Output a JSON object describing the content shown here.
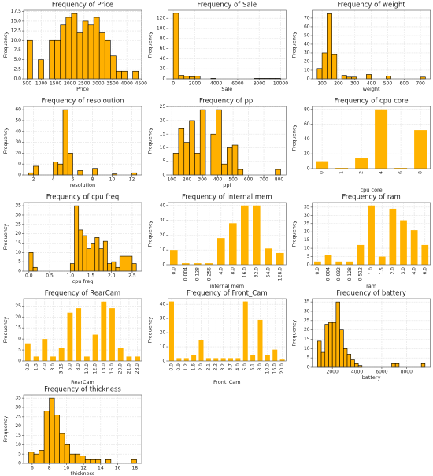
{
  "chart_data": [
    {
      "type": "histogram",
      "title": "Frequency of Price",
      "xlabel": "Price",
      "ylabel": "Frequency",
      "color": "#ffb000",
      "edgecolor": "#000000",
      "grid": true,
      "bins": [
        500,
        695,
        890,
        1085,
        1280,
        1475,
        1670,
        1865,
        2060,
        2255,
        2450,
        2645,
        2840,
        3035,
        3230,
        3425,
        3620,
        3815,
        4010,
        4205,
        4400
      ],
      "values": [
        10,
        0,
        5,
        0,
        10,
        10,
        14,
        16,
        17,
        12,
        15,
        14,
        16,
        12,
        10,
        6,
        2,
        2,
        0,
        2
      ],
      "xlim": [
        380,
        4520
      ],
      "xticks": [
        500,
        1000,
        1500,
        2000,
        2500,
        3000,
        3500,
        4000,
        4500
      ],
      "ylim": [
        0,
        17.85
      ],
      "yticks": [
        {
          "value": 0,
          "label": "0.0"
        },
        2.5,
        {
          "value": 5,
          "label": "5.0"
        },
        7.5,
        {
          "value": 10,
          "label": "10.0"
        },
        12.5,
        {
          "value": 15,
          "label": "15.0"
        },
        17.5
      ]
    },
    {
      "type": "histogram",
      "title": "Frequency of Sale",
      "xlabel": "Sale",
      "ylabel": "Frequency",
      "color": "#ffb000",
      "edgecolor": "#000000",
      "grid": true,
      "bins": [
        0,
        500,
        1000,
        1500,
        2000,
        2500,
        3000,
        3500,
        4000,
        4500,
        5000,
        5500,
        6000,
        6500,
        7000,
        7500,
        8000,
        8500,
        9000,
        9500,
        10000
      ],
      "values": [
        130,
        7,
        5,
        4,
        5,
        0,
        0,
        1,
        0,
        0,
        0,
        0,
        0,
        0,
        0,
        1,
        1,
        1,
        1,
        1
      ],
      "xlim": [
        -500,
        10500
      ],
      "xticks": [
        0,
        2000,
        4000,
        6000,
        8000,
        10000
      ],
      "ylim": [
        0,
        136
      ],
      "yticks": [
        0,
        20,
        40,
        60,
        80,
        100,
        120
      ]
    },
    {
      "type": "histogram",
      "title": "Frequency of weight",
      "xlabel": "weight",
      "ylabel": "Frequency",
      "color": "#ffb000",
      "edgecolor": "#000000",
      "grid": true,
      "bins": [
        70,
        100,
        130,
        160,
        190,
        220,
        250,
        280,
        310,
        340,
        370,
        400,
        430,
        460,
        490,
        520,
        550,
        580,
        610,
        640,
        670,
        700,
        730
      ],
      "values": [
        12,
        30,
        75,
        28,
        0,
        4,
        2,
        2,
        0,
        0,
        5,
        0,
        0,
        0,
        3,
        0,
        0,
        0,
        0,
        0,
        0,
        2
      ],
      "xlim": [
        40,
        760
      ],
      "xticks": [
        100,
        200,
        300,
        400,
        500,
        600,
        700
      ],
      "ylim": [
        0,
        79
      ],
      "yticks": [
        0,
        10,
        20,
        30,
        40,
        50,
        60,
        70
      ]
    },
    {
      "type": "histogram",
      "title": "Frequency of resoloution",
      "xlabel": "resolution",
      "ylabel": "Frequency",
      "color": "#ffb000",
      "edgecolor": "#000000",
      "grid": true,
      "bins": [
        1.5,
        2,
        2.5,
        3,
        3.5,
        4,
        4.5,
        5,
        5.5,
        6,
        6.5,
        7,
        7.5,
        8,
        8.5,
        9,
        9.5,
        10,
        10.5,
        11,
        11.5,
        12,
        12.5
      ],
      "values": [
        2,
        8,
        0,
        0,
        0,
        12,
        10,
        60,
        20,
        0,
        4,
        0,
        0,
        6,
        0,
        0,
        0,
        1,
        0,
        0,
        0,
        2
      ],
      "xlim": [
        1,
        13
      ],
      "xticks": [
        2,
        4,
        6,
        8,
        10,
        12
      ],
      "ylim": [
        0,
        63
      ],
      "yticks": [
        0,
        10,
        20,
        30,
        40,
        50,
        60
      ]
    },
    {
      "type": "histogram",
      "title": "Frequency of ppi",
      "xlabel": "ppi",
      "ylabel": "Frequency",
      "color": "#ffb000",
      "edgecolor": "#000000",
      "grid": true,
      "bins": [
        110,
        145,
        180,
        215,
        250,
        285,
        320,
        355,
        390,
        425,
        460,
        495,
        530,
        565,
        600,
        635,
        670,
        705,
        740,
        775,
        810
      ],
      "values": [
        8,
        17,
        12,
        20,
        8,
        24,
        0,
        15,
        24,
        4,
        10,
        11,
        2,
        0,
        0,
        0,
        0,
        0,
        0,
        2
      ],
      "xlim": [
        75,
        845
      ],
      "xticks": [
        100,
        200,
        300,
        400,
        500,
        600,
        700,
        800
      ],
      "ylim": [
        0,
        25.2
      ],
      "yticks": [
        0,
        5,
        10,
        15,
        20,
        25
      ]
    },
    {
      "type": "bar",
      "title": "Frequency of cpu core",
      "xlabel": "cpu core",
      "ylabel": "Frequency",
      "color": "#ffb300",
      "grid": true,
      "categories": [
        "0",
        "1",
        "2",
        "4",
        "6",
        "8"
      ],
      "values": [
        10,
        1,
        14,
        80,
        1,
        52
      ],
      "ylim": [
        0,
        84
      ],
      "yticks": [
        0,
        20,
        40,
        60,
        80
      ]
    },
    {
      "type": "histogram",
      "title": "Frequency of cpu freq",
      "xlabel": "cpu freq",
      "ylabel": "Frequency",
      "color": "#ffb000",
      "edgecolor": "#000000",
      "grid": true,
      "bins": [
        0,
        0.1,
        0.2,
        0.3,
        0.4,
        0.5,
        0.6,
        0.7,
        0.8,
        0.9,
        1,
        1.1,
        1.2,
        1.3,
        1.4,
        1.5,
        1.6,
        1.7,
        1.8,
        1.9,
        2,
        2.1,
        2.2,
        2.3,
        2.4,
        2.5,
        2.6
      ],
      "values": [
        10,
        2,
        0,
        0,
        0,
        0,
        0,
        0,
        0,
        0,
        4,
        35,
        22,
        19,
        12,
        15,
        18,
        12,
        16,
        4,
        5,
        2,
        8,
        8,
        8,
        4
      ],
      "xlim": [
        -0.13,
        2.73
      ],
      "xticks": [
        {
          "value": 0,
          "label": "0.0"
        },
        0.5,
        {
          "value": 1,
          "label": "1.0"
        },
        1.5,
        {
          "value": 2,
          "label": "2.0"
        },
        2.5
      ],
      "ylim": [
        0,
        36.75
      ],
      "yticks": [
        0,
        5,
        10,
        15,
        20,
        25,
        30,
        35
      ]
    },
    {
      "type": "bar",
      "title": "Frequency of internal mem",
      "xlabel": "internal mem",
      "ylabel": "Frequency",
      "color": "#ffb300",
      "grid": true,
      "categories": [
        "0.0",
        "0.004",
        "0.128",
        "0.256",
        "4.0",
        "8.0",
        "16.0",
        "32.0",
        "64.0",
        "128.0"
      ],
      "values": [
        10,
        1,
        1,
        1,
        18,
        28,
        40,
        40,
        11,
        8
      ],
      "ylim": [
        0,
        42
      ],
      "yticks": [
        0,
        10,
        20,
        30,
        40
      ]
    },
    {
      "type": "bar",
      "title": "Frequency of ram",
      "xlabel": "ram",
      "ylabel": "Frequency",
      "color": "#ffb300",
      "grid": true,
      "categories": [
        "0.0",
        "0.004",
        "0.032",
        "0.128",
        "0.512",
        "1.0",
        "1.5",
        "2.0",
        "3.0",
        "4.0",
        "6.0"
      ],
      "values": [
        2,
        6,
        2,
        2,
        12,
        36,
        5,
        34,
        27,
        21,
        12
      ],
      "ylim": [
        0,
        37.8
      ],
      "yticks": [
        0,
        5,
        10,
        15,
        20,
        25,
        30,
        35
      ]
    },
    {
      "type": "bar",
      "title": "Frequency of RearCam",
      "xlabel": "RearCam",
      "ylabel": "Frequency",
      "color": "#ffb300",
      "grid": true,
      "categories": [
        "0.0",
        "1.3",
        "2.0",
        "3.0",
        "3.15",
        "5.0",
        "8.0",
        "10.0",
        "12.0",
        "13.0",
        "16.0",
        "20.0",
        "21.0",
        "23.0"
      ],
      "values": [
        8,
        2,
        10,
        2,
        6,
        22,
        24,
        2,
        12,
        27,
        24,
        6,
        2,
        2
      ],
      "ylim": [
        0,
        28.35
      ],
      "yticks": [
        0,
        5,
        10,
        15,
        20,
        25
      ]
    },
    {
      "type": "bar",
      "title": "Frequency of Front_Cam",
      "xlabel": "Front_Cam",
      "ylabel": "Frequency",
      "color": "#ffb300",
      "grid": true,
      "categories": [
        "0.0",
        "0.9",
        "1.2",
        "1.6",
        "2.0",
        "2.1",
        "2.2",
        "3.2",
        "3.7",
        "4.0",
        "5.0",
        "5.1",
        "8.0",
        "10.0",
        "16.0",
        "20.0"
      ],
      "values": [
        42,
        2,
        2,
        4,
        15,
        2,
        2,
        2,
        2,
        2,
        42,
        4,
        29,
        4,
        8,
        1
      ],
      "ylim": [
        0,
        44
      ],
      "yticks": [
        0,
        10,
        20,
        30,
        40
      ]
    },
    {
      "type": "histogram",
      "title": "Frequency of battery",
      "xlabel": "battery",
      "ylabel": "Frequency",
      "color": "#ffb000",
      "edgecolor": "#000000",
      "grid": true,
      "bins": [
        800,
        1100,
        1400,
        1700,
        2000,
        2300,
        2600,
        2900,
        3200,
        3500,
        3800,
        4100,
        4400,
        4700,
        5000,
        5300,
        5600,
        5900,
        6200,
        6500,
        6800,
        7100,
        7400,
        7700,
        8000,
        8300,
        8600,
        8900,
        9200,
        9500
      ],
      "values": [
        14,
        8,
        23,
        24,
        24,
        35,
        20,
        10,
        7,
        4,
        2,
        1,
        0,
        0,
        0,
        0,
        0,
        0,
        0,
        0,
        2,
        2,
        0,
        0,
        0,
        0,
        0,
        0,
        2
      ],
      "xlim": [
        370,
        9930
      ],
      "xticks": [
        2000,
        4000,
        6000,
        8000
      ],
      "ylim": [
        0,
        36.75
      ],
      "yticks": [
        0,
        5,
        10,
        15,
        20,
        25,
        30,
        35
      ]
    },
    {
      "type": "histogram",
      "title": "Frequency of thickness",
      "xlabel": "thickness",
      "ylabel": "Frequency",
      "color": "#ffb000",
      "edgecolor": "#000000",
      "grid": true,
      "bins": [
        5.6,
        6.2,
        6.8,
        7.4,
        8.0,
        8.6,
        9.2,
        9.8,
        10.4,
        11.0,
        11.6,
        12.2,
        12.8,
        13.4,
        14.0,
        14.6,
        15.2,
        15.8,
        16.4,
        17.0,
        17.6,
        18.2
      ],
      "values": [
        6,
        5,
        7,
        28,
        35,
        26,
        16,
        10,
        5,
        5,
        4,
        2,
        2,
        2,
        0,
        2,
        0,
        0,
        0,
        0,
        2
      ],
      "xlim": [
        5,
        18.8
      ],
      "xticks": [
        6,
        8,
        10,
        12,
        14,
        16,
        18
      ],
      "ylim": [
        0,
        36.75
      ],
      "yticks": [
        0,
        5,
        10,
        15,
        20,
        25,
        30,
        35
      ]
    }
  ]
}
